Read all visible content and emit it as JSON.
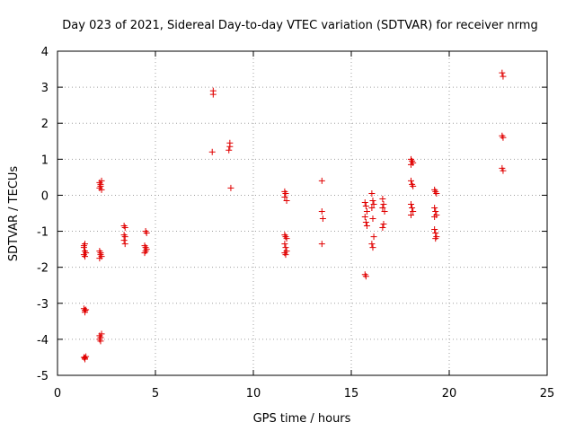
{
  "chart_data": {
    "type": "scatter",
    "title": "Day 023 of 2021, Sidereal Day-to-day VTEC variation (SDTVAR) for receiver nrmg",
    "xlabel": "GPS time / hours",
    "ylabel": "SDTVAR / TECUs",
    "xlim": [
      0,
      25
    ],
    "ylim": [
      -5,
      4
    ],
    "xticks": [
      0,
      5,
      10,
      15,
      20,
      25
    ],
    "yticks": [
      -5,
      -4,
      -3,
      -2,
      -1,
      0,
      1,
      2,
      3,
      4
    ],
    "grid": true,
    "marker": "+",
    "color": "#e00000",
    "series": [
      {
        "name": "nrmg",
        "points": [
          [
            1.35,
            -1.4
          ],
          [
            1.35,
            -1.45
          ],
          [
            1.4,
            -1.35
          ],
          [
            1.4,
            -1.55
          ],
          [
            1.35,
            -1.65
          ],
          [
            1.45,
            -1.6
          ],
          [
            1.4,
            -1.7
          ],
          [
            1.35,
            -3.15
          ],
          [
            1.4,
            -3.2
          ],
          [
            1.45,
            -3.18
          ],
          [
            1.4,
            -3.25
          ],
          [
            1.35,
            -4.5
          ],
          [
            1.4,
            -4.52
          ],
          [
            1.45,
            -4.48
          ],
          [
            1.4,
            -4.55
          ],
          [
            2.15,
            0.35
          ],
          [
            2.2,
            0.3
          ],
          [
            2.2,
            0.25
          ],
          [
            2.25,
            0.4
          ],
          [
            2.15,
            0.2
          ],
          [
            2.25,
            0.15
          ],
          [
            2.15,
            -1.55
          ],
          [
            2.2,
            -1.6
          ],
          [
            2.2,
            -1.65
          ],
          [
            2.25,
            -1.7
          ],
          [
            2.15,
            -1.75
          ],
          [
            2.15,
            -3.9
          ],
          [
            2.2,
            -3.95
          ],
          [
            2.25,
            -3.85
          ],
          [
            2.15,
            -4.0
          ],
          [
            2.2,
            -4.05
          ],
          [
            3.4,
            -0.85
          ],
          [
            3.45,
            -0.9
          ],
          [
            3.4,
            -1.1
          ],
          [
            3.45,
            -1.15
          ],
          [
            3.4,
            -1.25
          ],
          [
            3.45,
            -1.35
          ],
          [
            4.5,
            -1.0
          ],
          [
            4.55,
            -1.05
          ],
          [
            4.45,
            -1.4
          ],
          [
            4.5,
            -1.45
          ],
          [
            4.55,
            -1.5
          ],
          [
            4.5,
            -1.55
          ],
          [
            4.45,
            -1.6
          ],
          [
            7.95,
            2.9
          ],
          [
            7.95,
            2.8
          ],
          [
            7.9,
            1.2
          ],
          [
            8.8,
            1.45
          ],
          [
            8.8,
            1.35
          ],
          [
            8.75,
            1.25
          ],
          [
            8.85,
            0.2
          ],
          [
            11.6,
            0.1
          ],
          [
            11.65,
            0.05
          ],
          [
            11.6,
            -0.05
          ],
          [
            11.7,
            -0.15
          ],
          [
            11.6,
            -1.1
          ],
          [
            11.65,
            -1.15
          ],
          [
            11.7,
            -1.2
          ],
          [
            11.6,
            -1.35
          ],
          [
            11.65,
            -1.45
          ],
          [
            11.7,
            -1.55
          ],
          [
            11.6,
            -1.6
          ],
          [
            11.65,
            -1.65
          ],
          [
            13.5,
            0.4
          ],
          [
            13.5,
            -0.45
          ],
          [
            13.55,
            -0.65
          ],
          [
            13.5,
            -1.35
          ],
          [
            15.7,
            -0.2
          ],
          [
            15.75,
            -0.3
          ],
          [
            15.8,
            -0.45
          ],
          [
            15.7,
            -0.6
          ],
          [
            15.75,
            -0.75
          ],
          [
            15.8,
            -0.85
          ],
          [
            15.7,
            -2.2
          ],
          [
            15.75,
            -2.25
          ],
          [
            16.05,
            0.05
          ],
          [
            16.1,
            -0.15
          ],
          [
            16.15,
            -0.25
          ],
          [
            16.05,
            -0.35
          ],
          [
            16.1,
            -0.65
          ],
          [
            16.15,
            -1.15
          ],
          [
            16.05,
            -1.35
          ],
          [
            16.1,
            -1.45
          ],
          [
            16.6,
            -0.1
          ],
          [
            16.65,
            -0.25
          ],
          [
            16.6,
            -0.35
          ],
          [
            16.7,
            -0.45
          ],
          [
            16.65,
            -0.8
          ],
          [
            16.6,
            -0.9
          ],
          [
            18.05,
            1.0
          ],
          [
            18.1,
            0.95
          ],
          [
            18.15,
            0.9
          ],
          [
            18.05,
            0.85
          ],
          [
            18.05,
            0.4
          ],
          [
            18.1,
            0.3
          ],
          [
            18.15,
            0.25
          ],
          [
            18.05,
            -0.25
          ],
          [
            18.1,
            -0.35
          ],
          [
            18.15,
            -0.45
          ],
          [
            18.05,
            -0.55
          ],
          [
            19.25,
            0.15
          ],
          [
            19.3,
            0.1
          ],
          [
            19.35,
            0.05
          ],
          [
            19.25,
            -0.35
          ],
          [
            19.3,
            -0.45
          ],
          [
            19.35,
            -0.55
          ],
          [
            19.25,
            -0.6
          ],
          [
            19.25,
            -0.95
          ],
          [
            19.3,
            -1.05
          ],
          [
            19.35,
            -1.15
          ],
          [
            19.3,
            -1.2
          ],
          [
            22.7,
            3.4
          ],
          [
            22.75,
            3.3
          ],
          [
            22.7,
            1.65
          ],
          [
            22.75,
            1.6
          ],
          [
            22.7,
            0.75
          ],
          [
            22.75,
            0.68
          ]
        ]
      }
    ]
  }
}
